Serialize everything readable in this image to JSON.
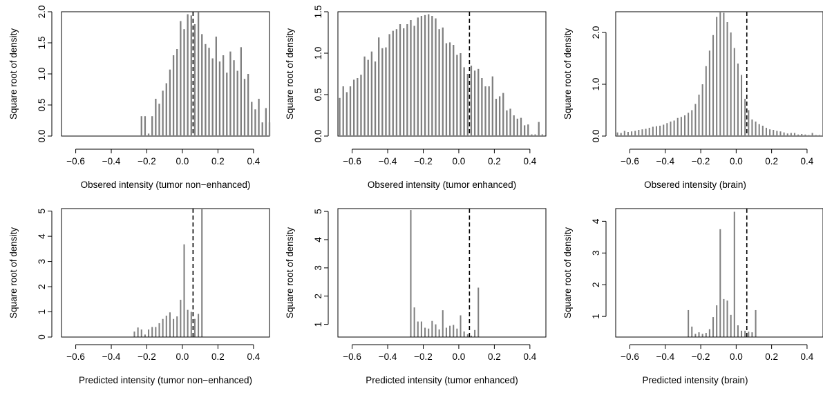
{
  "style": {
    "bar_color": "#808080",
    "axis_color": "#000000",
    "cutoff_line_style": "dashed"
  },
  "chart_data": [
    {
      "type": "bar",
      "xlabel": "Obsered intensity (tumor non−enhanced)",
      "ylabel": "Square root of density",
      "xlim": [
        -0.68,
        0.49
      ],
      "ylim": [
        0,
        2.0
      ],
      "x_ticks": [
        -0.6,
        -0.4,
        -0.2,
        0.0,
        0.2,
        0.4
      ],
      "x_tick_labels": [
        "−0.6",
        "−0.4",
        "−0.2",
        "0.0",
        "0.2",
        "0.4"
      ],
      "y_ticks": [
        0.0,
        0.5,
        1.0,
        1.5,
        2.0
      ],
      "y_tick_labels": [
        "0.0",
        "0.5",
        "1.0",
        "1.5",
        "2.0"
      ],
      "vline": 0.06,
      "bar_width": 0.009,
      "x": [
        -0.23,
        -0.21,
        -0.19,
        -0.17,
        -0.15,
        -0.13,
        -0.11,
        -0.09,
        -0.07,
        -0.05,
        -0.03,
        -0.01,
        0.01,
        0.03,
        0.05,
        0.07,
        0.09,
        0.11,
        0.13,
        0.15,
        0.17,
        0.19,
        0.21,
        0.23,
        0.25,
        0.27,
        0.29,
        0.31,
        0.33,
        0.35,
        0.37,
        0.39,
        0.41,
        0.43,
        0.45,
        0.47,
        0.49
      ],
      "values": [
        0.32,
        0.32,
        0.04,
        0.32,
        0.6,
        0.52,
        0.73,
        0.85,
        1.07,
        1.3,
        1.4,
        1.85,
        1.72,
        1.96,
        1.94,
        1.8,
        1.99,
        1.64,
        1.48,
        1.42,
        1.25,
        1.6,
        1.2,
        1.3,
        1.02,
        1.36,
        1.22,
        1.05,
        1.43,
        0.92,
        1.0,
        0.55,
        0.43,
        0.6,
        0.22,
        0.45,
        0.22
      ]
    },
    {
      "type": "bar",
      "xlabel": "Obsered intensity (tumor enhanced)",
      "ylabel": "Square root of density",
      "xlim": [
        -0.68,
        0.49
      ],
      "ylim": [
        0,
        1.5
      ],
      "x_ticks": [
        -0.6,
        -0.4,
        -0.2,
        0.0,
        0.2,
        0.4
      ],
      "x_tick_labels": [
        "−0.6",
        "−0.4",
        "−0.2",
        "0.0",
        "0.2",
        "0.4"
      ],
      "y_ticks": [
        0.0,
        0.5,
        1.0,
        1.5
      ],
      "y_tick_labels": [
        "0.0",
        "0.5",
        "1.0",
        "1.5"
      ],
      "vline": 0.06,
      "bar_width": 0.009,
      "x": [
        -0.67,
        -0.65,
        -0.63,
        -0.61,
        -0.59,
        -0.57,
        -0.55,
        -0.53,
        -0.51,
        -0.49,
        -0.47,
        -0.45,
        -0.43,
        -0.41,
        -0.39,
        -0.37,
        -0.35,
        -0.33,
        -0.31,
        -0.29,
        -0.27,
        -0.25,
        -0.23,
        -0.21,
        -0.19,
        -0.17,
        -0.15,
        -0.13,
        -0.11,
        -0.09,
        -0.07,
        -0.05,
        -0.03,
        -0.01,
        0.01,
        0.03,
        0.05,
        0.07,
        0.09,
        0.11,
        0.13,
        0.15,
        0.17,
        0.19,
        0.21,
        0.23,
        0.25,
        0.27,
        0.29,
        0.31,
        0.33,
        0.35,
        0.37,
        0.39,
        0.41,
        0.43,
        0.45,
        0.47
      ],
      "values": [
        0.46,
        0.6,
        0.53,
        0.6,
        0.68,
        0.7,
        0.74,
        0.96,
        0.92,
        1.02,
        0.9,
        1.19,
        1.06,
        1.07,
        1.23,
        1.27,
        1.29,
        1.35,
        1.3,
        1.35,
        1.4,
        1.33,
        1.43,
        1.45,
        1.46,
        1.47,
        1.45,
        1.42,
        1.29,
        1.31,
        1.12,
        1.13,
        1.1,
        0.98,
        1.0,
        0.83,
        0.75,
        0.85,
        0.79,
        0.81,
        0.7,
        0.6,
        0.6,
        0.72,
        0.45,
        0.48,
        0.52,
        0.31,
        0.33,
        0.25,
        0.21,
        0.22,
        0.13,
        0.14,
        0.02,
        0.02,
        0.17,
        0.02
      ]
    },
    {
      "type": "bar",
      "xlabel": "Obsered intensity (brain)",
      "ylabel": "Square root of density",
      "xlim": [
        -0.68,
        0.49
      ],
      "ylim": [
        0,
        2.4
      ],
      "x_ticks": [
        -0.6,
        -0.4,
        -0.2,
        0.0,
        0.2,
        0.4
      ],
      "x_tick_labels": [
        "−0.6",
        "−0.4",
        "−0.2",
        "0.0",
        "0.2",
        "0.4"
      ],
      "y_ticks": [
        0.0,
        1.0,
        2.0
      ],
      "y_tick_labels": [
        "0.0",
        "1.0",
        "2.0"
      ],
      "vline": 0.06,
      "bar_width": 0.008,
      "x": [
        -0.67,
        -0.65,
        -0.63,
        -0.61,
        -0.59,
        -0.57,
        -0.55,
        -0.53,
        -0.51,
        -0.49,
        -0.47,
        -0.45,
        -0.43,
        -0.41,
        -0.39,
        -0.37,
        -0.35,
        -0.33,
        -0.31,
        -0.29,
        -0.27,
        -0.25,
        -0.23,
        -0.21,
        -0.19,
        -0.17,
        -0.15,
        -0.13,
        -0.11,
        -0.09,
        -0.07,
        -0.05,
        -0.03,
        -0.01,
        0.01,
        0.03,
        0.05,
        0.07,
        0.09,
        0.11,
        0.13,
        0.15,
        0.17,
        0.19,
        0.21,
        0.23,
        0.25,
        0.27,
        0.29,
        0.31,
        0.33,
        0.35,
        0.37,
        0.39,
        0.41,
        0.43,
        0.45,
        0.47,
        0.49
      ],
      "values": [
        0.07,
        0.06,
        0.1,
        0.08,
        0.09,
        0.1,
        0.12,
        0.13,
        0.14,
        0.16,
        0.18,
        0.19,
        0.2,
        0.22,
        0.25,
        0.28,
        0.3,
        0.35,
        0.37,
        0.4,
        0.45,
        0.5,
        0.62,
        0.8,
        1.0,
        1.35,
        1.65,
        1.95,
        2.3,
        2.4,
        2.38,
        2.2,
        2.0,
        1.7,
        1.4,
        1.18,
        0.72,
        0.5,
        0.32,
        0.28,
        0.23,
        0.2,
        0.16,
        0.13,
        0.12,
        0.1,
        0.09,
        0.07,
        0.05,
        0.06,
        0.06,
        0.03,
        0.04,
        0.03,
        0.02,
        0.06,
        0.02,
        0.02,
        0.07
      ]
    },
    {
      "type": "bar",
      "xlabel": "Predicted intensity (tumor non−enhanced)",
      "ylabel": "Square root of density",
      "xlim": [
        -0.68,
        0.49
      ],
      "ylim": [
        0,
        5.1
      ],
      "x_ticks": [
        -0.6,
        -0.4,
        -0.2,
        0.0,
        0.2,
        0.4
      ],
      "x_tick_labels": [
        "−0.6",
        "−0.4",
        "−0.2",
        "0.0",
        "0.2",
        "0.4"
      ],
      "y_ticks": [
        0,
        1,
        2,
        3,
        4,
        5
      ],
      "y_tick_labels": [
        "0",
        "1",
        "2",
        "3",
        "4",
        "5"
      ],
      "vline": 0.06,
      "bar_width": 0.008,
      "x": [
        -0.27,
        -0.25,
        -0.23,
        -0.21,
        -0.19,
        -0.17,
        -0.15,
        -0.13,
        -0.11,
        -0.09,
        -0.07,
        -0.05,
        -0.03,
        -0.01,
        0.01,
        0.03,
        0.05,
        0.07,
        0.09,
        0.11
      ],
      "values": [
        0.22,
        0.38,
        0.3,
        0.1,
        0.3,
        0.4,
        0.4,
        0.55,
        0.72,
        0.85,
        0.98,
        0.72,
        0.82,
        1.48,
        3.68,
        1.08,
        1.0,
        0.72,
        0.92,
        5.1
      ]
    },
    {
      "type": "bar",
      "xlabel": "Predicted intensity (tumor enhanced)",
      "ylabel": "Square root of density",
      "xlim": [
        -0.68,
        0.49
      ],
      "ylim": [
        0.55,
        5.1
      ],
      "x_ticks": [
        -0.6,
        -0.4,
        -0.2,
        0.0,
        0.2,
        0.4
      ],
      "x_tick_labels": [
        "−0.6",
        "−0.4",
        "−0.2",
        "0.0",
        "0.2",
        "0.4"
      ],
      "y_ticks": [
        1,
        2,
        3,
        4,
        5
      ],
      "y_tick_labels": [
        "1",
        "2",
        "3",
        "4",
        "5"
      ],
      "vline": 0.06,
      "bar_width": 0.008,
      "x": [
        -0.27,
        -0.25,
        -0.23,
        -0.21,
        -0.19,
        -0.17,
        -0.15,
        -0.13,
        -0.11,
        -0.09,
        -0.07,
        -0.05,
        -0.03,
        -0.01,
        0.01,
        0.03,
        0.05,
        0.07,
        0.09,
        0.11
      ],
      "values": [
        5.05,
        1.6,
        1.1,
        1.1,
        0.88,
        0.85,
        1.12,
        1.0,
        0.82,
        1.5,
        0.88,
        0.95,
        0.98,
        0.85,
        1.32,
        0.75,
        0.65,
        0.6,
        0.8,
        2.3
      ]
    },
    {
      "type": "bar",
      "xlabel": "Predicted intensity (brain)",
      "ylabel": "Square root of density",
      "xlim": [
        -0.68,
        0.49
      ],
      "ylim": [
        0.35,
        4.4
      ],
      "x_ticks": [
        -0.6,
        -0.4,
        -0.2,
        0.0,
        0.2,
        0.4
      ],
      "x_tick_labels": [
        "−0.6",
        "−0.4",
        "−0.2",
        "0.0",
        "0.2",
        "0.4"
      ],
      "y_ticks": [
        1,
        2,
        3,
        4
      ],
      "y_tick_labels": [
        "1",
        "2",
        "3",
        "4"
      ],
      "vline": 0.06,
      "bar_width": 0.008,
      "x": [
        -0.27,
        -0.25,
        -0.23,
        -0.21,
        -0.19,
        -0.17,
        -0.15,
        -0.13,
        -0.11,
        -0.09,
        -0.07,
        -0.05,
        -0.03,
        -0.01,
        0.01,
        0.03,
        0.05,
        0.07,
        0.09,
        0.11
      ],
      "values": [
        1.2,
        0.68,
        0.45,
        0.5,
        0.45,
        0.48,
        0.6,
        0.98,
        1.35,
        3.75,
        1.55,
        1.5,
        1.05,
        4.3,
        0.72,
        0.55,
        0.55,
        0.52,
        0.5,
        1.2
      ]
    }
  ]
}
